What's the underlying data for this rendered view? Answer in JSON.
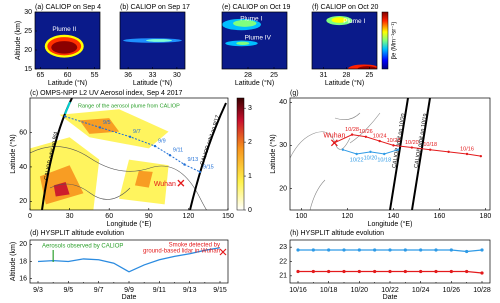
{
  "chart_data": [
    {
      "type": "heatmap",
      "title": "(a) CALIOP on Sep 4",
      "xlabel": "Latitude (°N)",
      "ylabel": "Altitude (km)",
      "xlim": [
        66,
        54
      ],
      "xticks": [
        65,
        60,
        55
      ],
      "ylim": [
        15,
        30
      ],
      "yticks": [
        15,
        20,
        25,
        30
      ],
      "annotations": [
        "Plume II"
      ]
    },
    {
      "type": "heatmap",
      "title": "(b) CALIOP on Sep 17",
      "xlabel": "Latitude (°N)",
      "xlim": [
        37,
        29
      ],
      "xticks": [
        36,
        33,
        30
      ],
      "annotations": []
    },
    {
      "type": "heatmap",
      "title": "(e) CALIOP on Oct 19",
      "xlabel": "Latitude (°N)",
      "xlim": [
        31,
        23.5
      ],
      "xticks": [
        28,
        25
      ],
      "annotations": [
        "Plume I",
        "Plume IV"
      ]
    },
    {
      "type": "heatmap",
      "title": "(f) CALIOP on Oct 20",
      "xlabel": "Latitude (°N)",
      "xlim": [
        32.5,
        24
      ],
      "xticks": [
        31,
        28,
        25
      ],
      "annotations": [
        "Plume I"
      ],
      "colorbar_label": "βe (Mm⁻¹sr⁻¹)"
    },
    {
      "type": "map",
      "title": "(c) OMPS-NPP L2 UV Aerosol index, Sep 4 2017",
      "xlabel": "Longitude (°E)",
      "ylabel": "Latitude (°N)",
      "xlim": [
        0,
        150
      ],
      "xticks": [
        0,
        30,
        60,
        90,
        120,
        150
      ],
      "ylim": [
        15,
        80
      ],
      "yticks": [
        20,
        40,
        60
      ],
      "clim": [
        0,
        3.3
      ],
      "cticks": [
        0,
        1,
        2,
        3
      ],
      "annotations": [
        {
          "text": "Range of the aerosol plume from CALIOP",
          "color": "#2ca02c"
        },
        {
          "text": "CALIOP orbit on 9/4",
          "color": "#000000"
        },
        {
          "text": "CALIOP orbit on 9/17",
          "color": "#000000"
        }
      ],
      "site": {
        "name": "Wuhan",
        "lon": 114.3,
        "lat": 30.6,
        "color": "#e31a1c"
      },
      "trajectories": [
        {
          "color": "#1f6fd6",
          "lon": [
            26.5,
            53,
            75.8,
            94.7,
            106,
            117,
            128.8
          ],
          "lat": [
            69.3,
            62.9,
            57.5,
            52.1,
            46.8,
            41.4,
            37.1
          ],
          "labels": [
            null,
            "9/5",
            "9/7",
            "9/9",
            "9/11",
            "9/13",
            "9/15"
          ]
        }
      ]
    },
    {
      "type": "map",
      "title": "(g)",
      "xlabel": "Longitude (°E)",
      "ylabel": "Latitude (°N)",
      "xlim": [
        95,
        182
      ],
      "xticks": [
        100,
        120,
        140,
        160,
        180
      ],
      "ylim": [
        15,
        41
      ],
      "yticks": [
        20,
        30,
        40
      ],
      "annotations": [
        {
          "text": "CALIOP orbit on 10/20",
          "color": "#000000"
        },
        {
          "text": "CALIOP orbit on 10/19",
          "color": "#000000"
        }
      ],
      "site": {
        "name": "Wuhan",
        "lon": 114.3,
        "lat": 30.6,
        "color": "#e31a1c"
      },
      "trajectories": [
        {
          "color": "#e31a1c",
          "lon": [
            114.3,
            122,
            128,
            134,
            140,
            148,
            156,
            164,
            172,
            178
          ],
          "lat": [
            30.6,
            32.5,
            32,
            31,
            30,
            29.5,
            29,
            28.5,
            28,
            27.5
          ],
          "labels": [
            null,
            "10/28",
            "10/26",
            "10/24",
            "10/22",
            "10/20",
            "10/18",
            null,
            "10/16",
            null
          ]
        },
        {
          "color": "#2e9ae6",
          "lon": [
            118,
            124,
            130,
            136,
            142
          ],
          "lat": [
            29,
            28,
            28.5,
            28,
            29
          ],
          "labels": [
            null,
            "10/22",
            "10/20",
            "10/18",
            null
          ]
        }
      ]
    },
    {
      "type": "line",
      "title": "(d) HYSPLIT altitude evolution",
      "xlabel": "Date",
      "ylabel": "Altitude (km)",
      "categories": [
        "9/3",
        null,
        "9/5",
        null,
        "9/7",
        null,
        "9/9",
        null,
        "9/11",
        null,
        "9/13",
        null,
        "9/15"
      ],
      "ylim": [
        15.5,
        20.5
      ],
      "yticks": [
        16,
        18,
        20
      ],
      "series": [
        {
          "color": "#2b8be0",
          "values": [
            18.0,
            18.1,
            18.0,
            18.3,
            18.2,
            17.8,
            16.8,
            17.6,
            18.2,
            18.6,
            18.9,
            19.3,
            19.6
          ]
        }
      ],
      "annotations": [
        {
          "text": "Aerosols observed by CALIOP",
          "color": "#2ca02c"
        },
        {
          "text": "Smoke detected by",
          "color": "#e31a1c"
        },
        {
          "text": "ground-based lidar in Wuhan",
          "color": "#e31a1c"
        }
      ]
    },
    {
      "type": "line",
      "title": "(h) HYSPLIT altitude evolution",
      "xlabel": "Date",
      "categories": [
        "10/16",
        null,
        "10/18",
        null,
        "10/20",
        null,
        "10/22",
        null,
        "10/24",
        null,
        "10/26",
        null,
        "10/28"
      ],
      "ylim": [
        20.5,
        23.5
      ],
      "yticks": [
        21,
        22,
        23
      ],
      "markers": true,
      "series": [
        {
          "color": "#2e9ae6",
          "values": [
            22.8,
            22.8,
            22.8,
            22.8,
            22.8,
            22.8,
            22.8,
            22.8,
            22.8,
            22.8,
            22.8,
            22.7,
            22.8
          ]
        },
        {
          "color": "#e31a1c",
          "values": [
            21.3,
            21.3,
            21.3,
            21.3,
            21.3,
            21.3,
            21.3,
            21.3,
            21.3,
            21.3,
            21.3,
            21.3,
            21.2
          ]
        }
      ]
    }
  ]
}
